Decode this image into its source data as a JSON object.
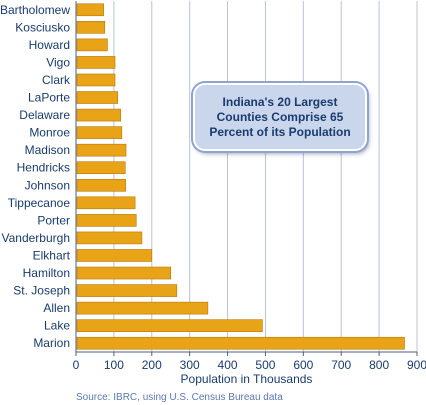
{
  "chart_data": {
    "type": "bar",
    "orientation": "horizontal",
    "categories": [
      "Bartholomew",
      "Kosciusko",
      "Howard",
      "Vigo",
      "Clark",
      "LaPorte",
      "Delaware",
      "Monroe",
      "Madison",
      "Hendricks",
      "Johnson",
      "Tippecanoe",
      "Porter",
      "Vanderburgh",
      "Elkhart",
      "Hamilton",
      "St. Joseph",
      "Allen",
      "Lake",
      "Marion"
    ],
    "values": [
      73,
      76,
      83,
      103,
      103,
      110,
      118,
      121,
      132,
      130,
      131,
      156,
      159,
      174,
      200,
      250,
      266,
      348,
      492,
      867
    ],
    "xlabel": "Population in Thousands",
    "xlim": [
      0,
      900
    ],
    "xticks": [
      0,
      100,
      200,
      300,
      400,
      500,
      600,
      700,
      800,
      900
    ],
    "grid": true,
    "bar_color": "#e8a316",
    "annotation": "Indiana's 20 Largest Counties Comprise 65 Percent of its Population",
    "source": "Source: IBRC, using U.S. Census Bureau data"
  }
}
